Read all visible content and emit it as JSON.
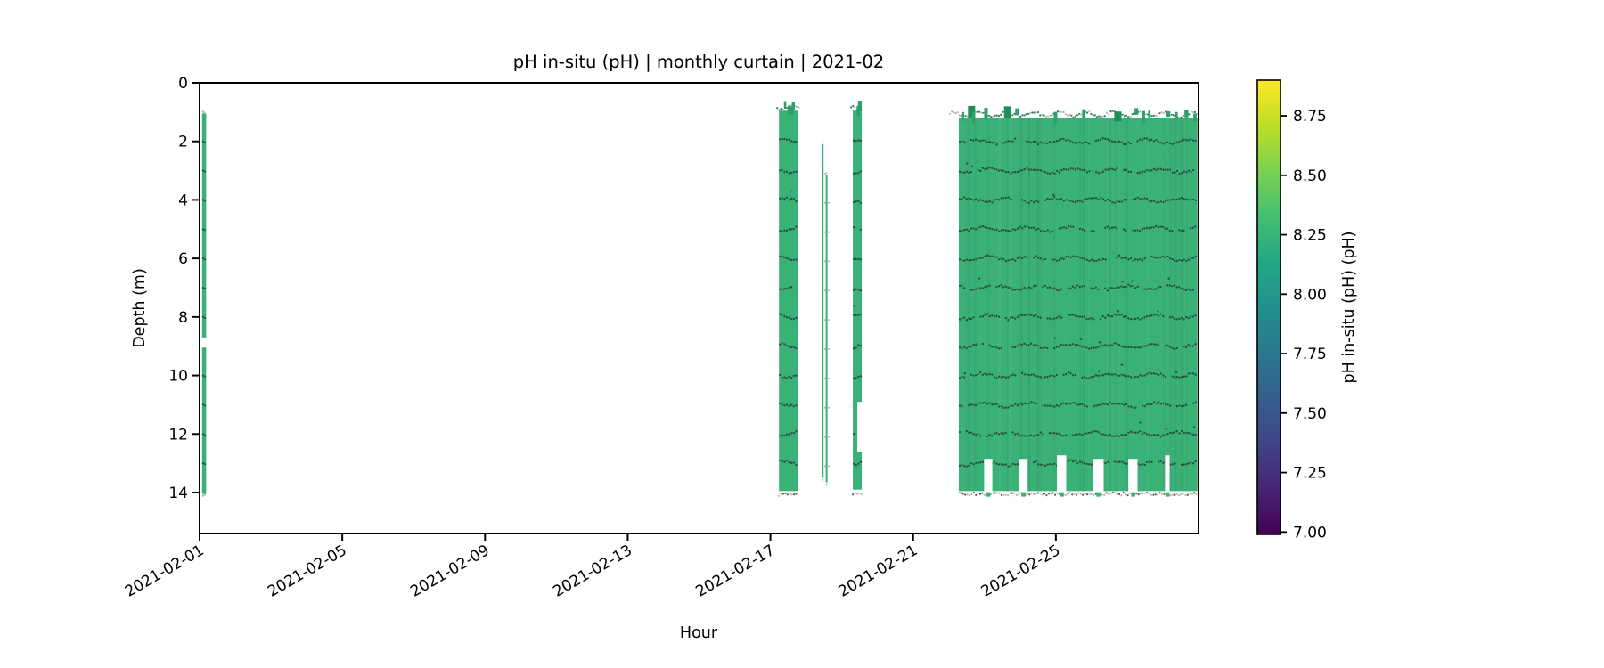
{
  "figure": {
    "title": "pH in-situ (pH) | monthly curtain | 2021-02",
    "xlabel": "Hour",
    "ylabel": "Depth (m)",
    "colorbar_label": "pH in-situ (pH) (pH)"
  },
  "chart_data": {
    "type": "heatmap",
    "subtype": "curtain",
    "title": "pH in-situ (pH) | monthly curtain | 2021-02",
    "xlabel": "Hour",
    "ylabel": "Depth (m)",
    "x_tick_labels": [
      "2021-02-01",
      "2021-02-05",
      "2021-02-09",
      "2021-02-13",
      "2021-02-17",
      "2021-02-21",
      "2021-02-25"
    ],
    "x_tick_days": [
      0,
      4,
      8,
      12,
      16,
      20,
      24
    ],
    "x_range_days": 28,
    "y_tick_labels": [
      "0",
      "2",
      "4",
      "6",
      "8",
      "10",
      "12",
      "14"
    ],
    "y_ticks": [
      0,
      2,
      4,
      6,
      8,
      10,
      12,
      14
    ],
    "ylim": [
      15.4,
      0
    ],
    "grid": false,
    "colorbar": {
      "label": "pH in-situ (pH) (pH)",
      "tick_labels": [
        "8.75",
        "8.50",
        "8.25",
        "8.00",
        "7.75",
        "7.50",
        "7.25",
        "7.00"
      ],
      "ticks": [
        8.75,
        8.5,
        8.25,
        8.0,
        7.75,
        7.5,
        7.25,
        7.0
      ],
      "vmin": 6.99,
      "vmax": 8.9,
      "cmap": "viridis",
      "cmap_stops": [
        "#440154",
        "#482475",
        "#414487",
        "#355f8d",
        "#2a788e",
        "#21918c",
        "#22a884",
        "#44bf70",
        "#7ad151",
        "#bddf26",
        "#fde725"
      ]
    },
    "dominant_value_ph": 8.3,
    "fill_color": "#3ab176",
    "spike_color": "#2aa06a",
    "dark_spike_color": "#1f8f58",
    "trace_color": "#27463c",
    "edge_dot_color": "#adadad",
    "segments": [
      {
        "name": "cast-feb01",
        "kind": "strip",
        "day_start": 0.07,
        "day_end": 0.185,
        "depth_top": 1.05,
        "depth_bottom": 14.05,
        "gaps": [
          {
            "depth_top": 8.7,
            "depth_bottom": 9.05,
            "half": "full"
          }
        ]
      },
      {
        "name": "band-feb17",
        "kind": "band",
        "day_start": 16.24,
        "day_end": 16.77,
        "depth_top": 0.95,
        "depth_bottom": 13.95,
        "gaps": [],
        "surface_spikes": 4,
        "trace_depths": [
          2,
          3,
          4,
          5,
          6,
          7,
          8,
          9,
          10,
          11,
          12,
          13
        ]
      },
      {
        "name": "line-feb18-a",
        "kind": "line",
        "day_start": 17.44,
        "day_end": 17.49,
        "depth_top": 2.1,
        "depth_bottom": 13.5,
        "gaps": []
      },
      {
        "name": "line-feb18-b",
        "kind": "line",
        "day_start": 17.55,
        "day_end": 17.6,
        "depth_top": 3.15,
        "depth_bottom": 13.65,
        "gaps": []
      },
      {
        "name": "band-feb18",
        "kind": "band",
        "day_start": 18.31,
        "day_end": 18.56,
        "depth_top": 0.95,
        "depth_bottom": 13.9,
        "gaps": [
          {
            "depth_top": 10.9,
            "depth_bottom": 12.6,
            "half": "right"
          }
        ],
        "surface_spikes": 3,
        "trace_depths": [
          2,
          3,
          4,
          5,
          6,
          7,
          8,
          9,
          10,
          11,
          12,
          13
        ]
      },
      {
        "name": "block-feb22-28",
        "kind": "block",
        "day_start": 21.28,
        "day_end": 27.97,
        "depth_top": 1.2,
        "depth_bottom": 13.95,
        "gaps": [],
        "surface_spikes": 16,
        "surface_depth": 1.05,
        "bottom_trace_depth": 14.05,
        "trace_depths": [
          2,
          3,
          4,
          5,
          6,
          7,
          8,
          9,
          10,
          11,
          12,
          13
        ],
        "notch_depth_top": 12.85,
        "bottom_notches": [
          {
            "day_start": 21.99,
            "day_end": 22.22
          },
          {
            "day_start": 22.96,
            "day_end": 23.21
          },
          {
            "day_start": 24.03,
            "day_end": 24.29
          },
          {
            "day_start": 25.03,
            "day_end": 25.34
          },
          {
            "day_start": 26.03,
            "day_end": 26.29
          },
          {
            "day_start": 27.06,
            "day_end": 27.19
          }
        ]
      }
    ]
  }
}
